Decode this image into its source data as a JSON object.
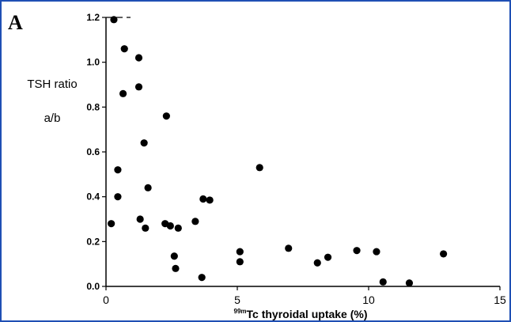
{
  "panel_label": "A",
  "chart_data": {
    "type": "scatter",
    "ylabel_line1": "TSH ratio",
    "ylabel_line2": "a/b",
    "xlabel_sup": "99m",
    "xlabel_main": "Tc thyroidal uptake (%)",
    "xlim": [
      0,
      15
    ],
    "ylim": [
      0,
      1.2
    ],
    "xticks": [
      0,
      5,
      10,
      15
    ],
    "xtick_labels": [
      "0",
      "5",
      "10",
      "15"
    ],
    "yticks": [
      0.0,
      0.2,
      0.4,
      0.6,
      0.8,
      1.0,
      1.2
    ],
    "ytick_labels": [
      "0.0",
      "0.2",
      "0.4",
      "0.6",
      "0.8",
      "1.0",
      "1.2"
    ],
    "grid": false,
    "marker_color": "#000000",
    "frame_color": "#1f4fb4",
    "points": [
      {
        "x": 0.3,
        "y": 1.19
      },
      {
        "x": 0.7,
        "y": 1.06
      },
      {
        "x": 1.25,
        "y": 1.02
      },
      {
        "x": 1.25,
        "y": 0.89
      },
      {
        "x": 0.65,
        "y": 0.86
      },
      {
        "x": 2.3,
        "y": 0.76
      },
      {
        "x": 1.45,
        "y": 0.64
      },
      {
        "x": 5.85,
        "y": 0.53
      },
      {
        "x": 0.45,
        "y": 0.52
      },
      {
        "x": 1.6,
        "y": 0.44
      },
      {
        "x": 0.45,
        "y": 0.4
      },
      {
        "x": 3.7,
        "y": 0.39
      },
      {
        "x": 3.95,
        "y": 0.385
      },
      {
        "x": 1.3,
        "y": 0.3
      },
      {
        "x": 3.4,
        "y": 0.29
      },
      {
        "x": 0.2,
        "y": 0.28
      },
      {
        "x": 2.25,
        "y": 0.28
      },
      {
        "x": 2.45,
        "y": 0.27
      },
      {
        "x": 1.5,
        "y": 0.26
      },
      {
        "x": 2.75,
        "y": 0.26
      },
      {
        "x": 6.95,
        "y": 0.17
      },
      {
        "x": 9.55,
        "y": 0.16
      },
      {
        "x": 5.1,
        "y": 0.155
      },
      {
        "x": 10.3,
        "y": 0.155
      },
      {
        "x": 12.85,
        "y": 0.145
      },
      {
        "x": 2.6,
        "y": 0.135
      },
      {
        "x": 8.45,
        "y": 0.13
      },
      {
        "x": 5.1,
        "y": 0.11
      },
      {
        "x": 8.05,
        "y": 0.105
      },
      {
        "x": 2.65,
        "y": 0.08
      },
      {
        "x": 3.65,
        "y": 0.04
      },
      {
        "x": 10.55,
        "y": 0.02
      },
      {
        "x": 11.55,
        "y": 0.015
      }
    ]
  }
}
